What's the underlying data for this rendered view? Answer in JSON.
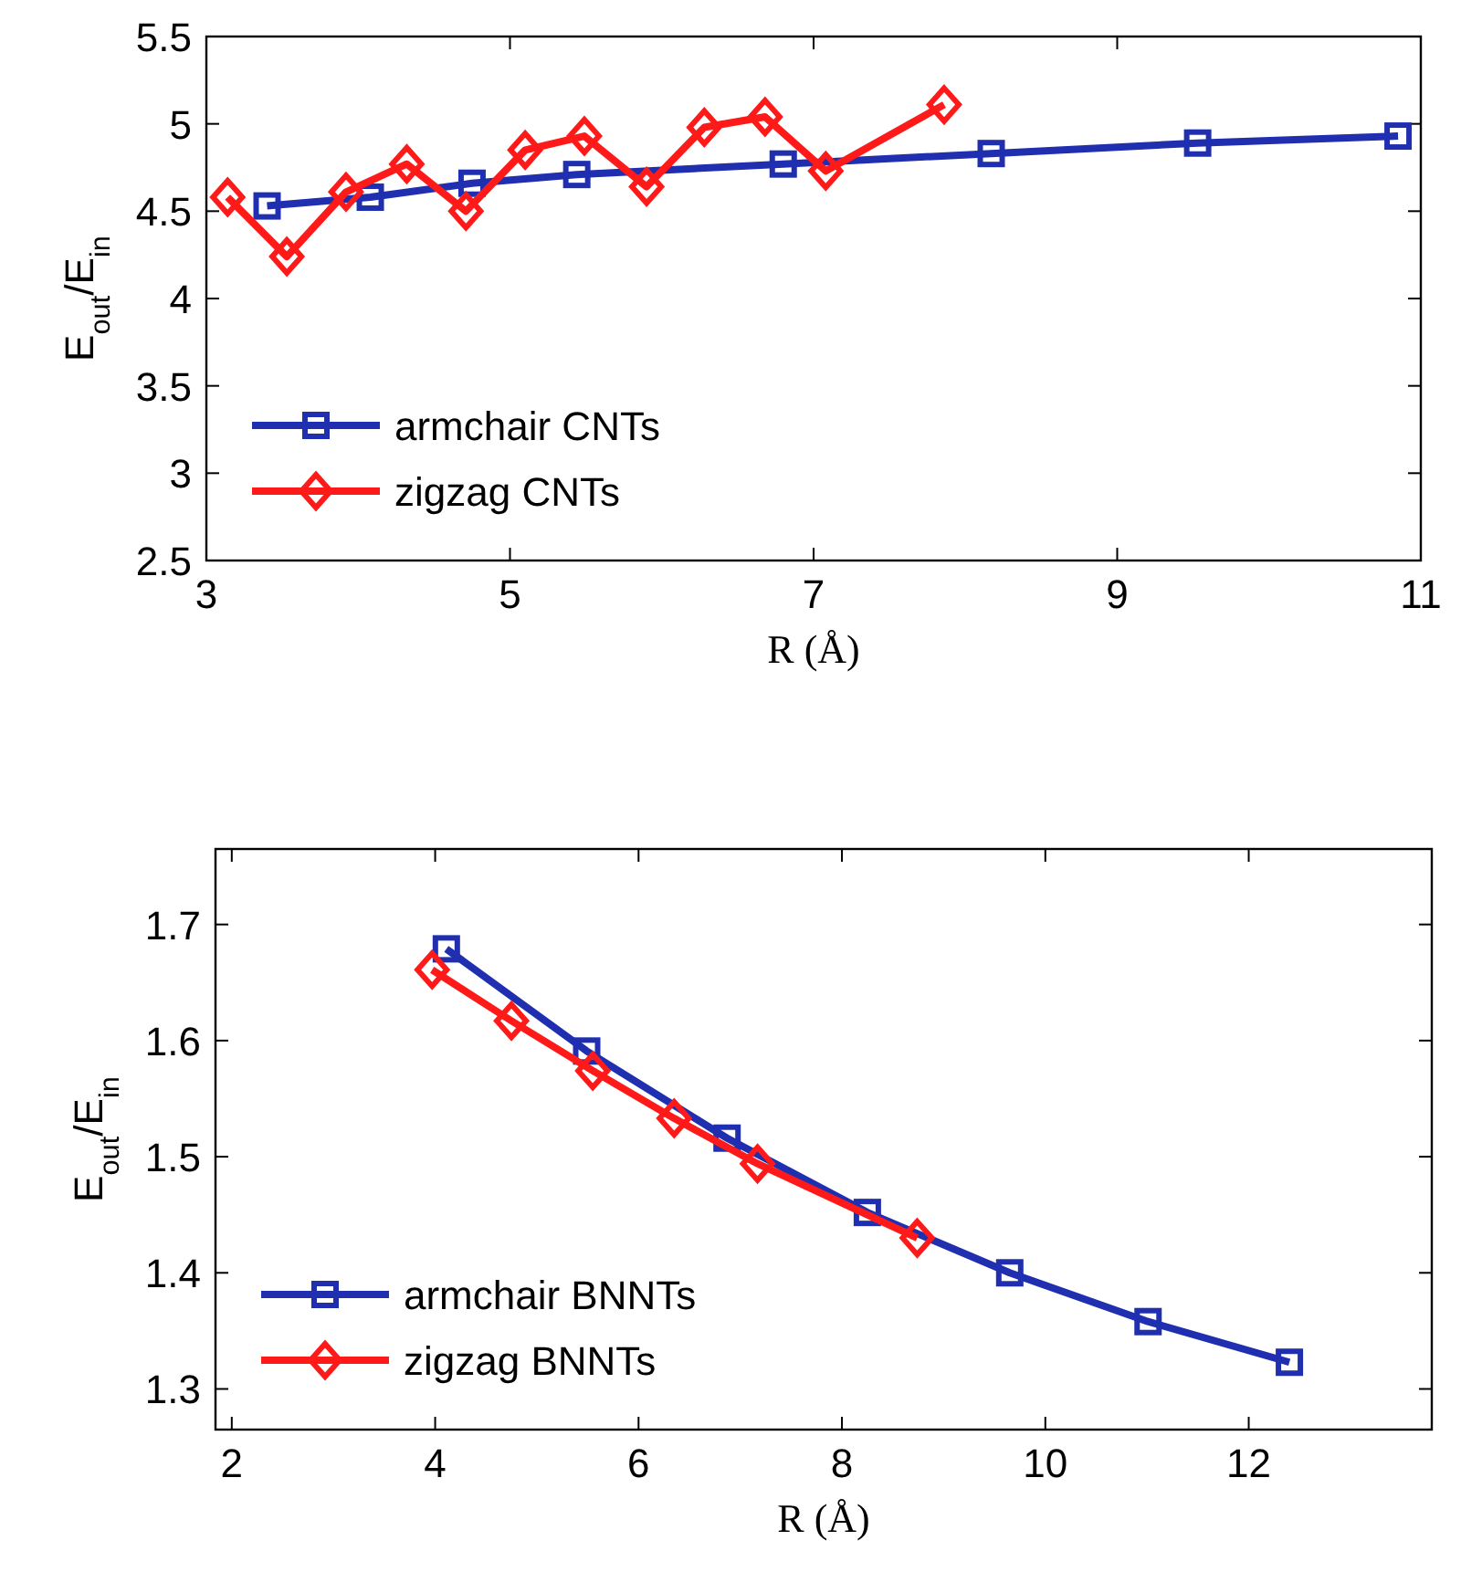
{
  "chart_data": [
    {
      "type": "line",
      "xlabel": "R (Å)",
      "ylabel": "E$_{out}$/E$_{in}$",
      "xlim": [
        3,
        11
      ],
      "xticks": [
        3,
        5,
        7,
        9,
        11
      ],
      "ylim": [
        2.5,
        5.5
      ],
      "yticks": [
        2.5,
        3,
        3.5,
        4,
        4.5,
        5,
        5.5
      ],
      "legend": "bottom left",
      "series": [
        {
          "name": "armchair CNTs",
          "color": "#1f2fb0",
          "marker": "square",
          "x": [
            3.4,
            4.08,
            4.75,
            5.44,
            6.8,
            8.17,
            9.53,
            10.85
          ],
          "values": [
            4.53,
            4.58,
            4.66,
            4.71,
            4.77,
            4.83,
            4.89,
            4.93
          ]
        },
        {
          "name": "zigzag CNTs",
          "color": "#ff1a1a",
          "marker": "diamond",
          "x": [
            3.14,
            3.53,
            3.92,
            4.32,
            4.71,
            5.1,
            5.49,
            5.9,
            6.28,
            6.68,
            7.08,
            7.86
          ],
          "values": [
            4.58,
            4.24,
            4.61,
            4.77,
            4.5,
            4.85,
            4.93,
            4.64,
            4.98,
            5.04,
            4.73,
            5.11
          ]
        }
      ]
    },
    {
      "type": "line",
      "xlabel": "R (Å)",
      "ylabel": "E$_{out}$/E$_{in}$",
      "xlim": [
        1.84,
        13.8
      ],
      "xticks": [
        2,
        4,
        6,
        8,
        10,
        12
      ],
      "ylim": [
        1.265,
        1.765
      ],
      "yticks": [
        1.3,
        1.4,
        1.5,
        1.6,
        1.7
      ],
      "legend": "bottom left",
      "series": [
        {
          "name": "armchair BNNTs",
          "color": "#1f2fb0",
          "marker": "square",
          "x": [
            4.11,
            5.49,
            6.87,
            8.25,
            9.65,
            11.01,
            12.4
          ],
          "values": [
            1.679,
            1.591,
            1.516,
            1.452,
            1.4,
            1.358,
            1.323
          ]
        },
        {
          "name": "zigzag BNNTs",
          "color": "#ff1a1a",
          "marker": "diamond",
          "x": [
            3.97,
            4.75,
            5.55,
            6.35,
            7.17,
            8.74
          ],
          "values": [
            1.661,
            1.617,
            1.574,
            1.533,
            1.494,
            1.43
          ]
        }
      ]
    }
  ]
}
